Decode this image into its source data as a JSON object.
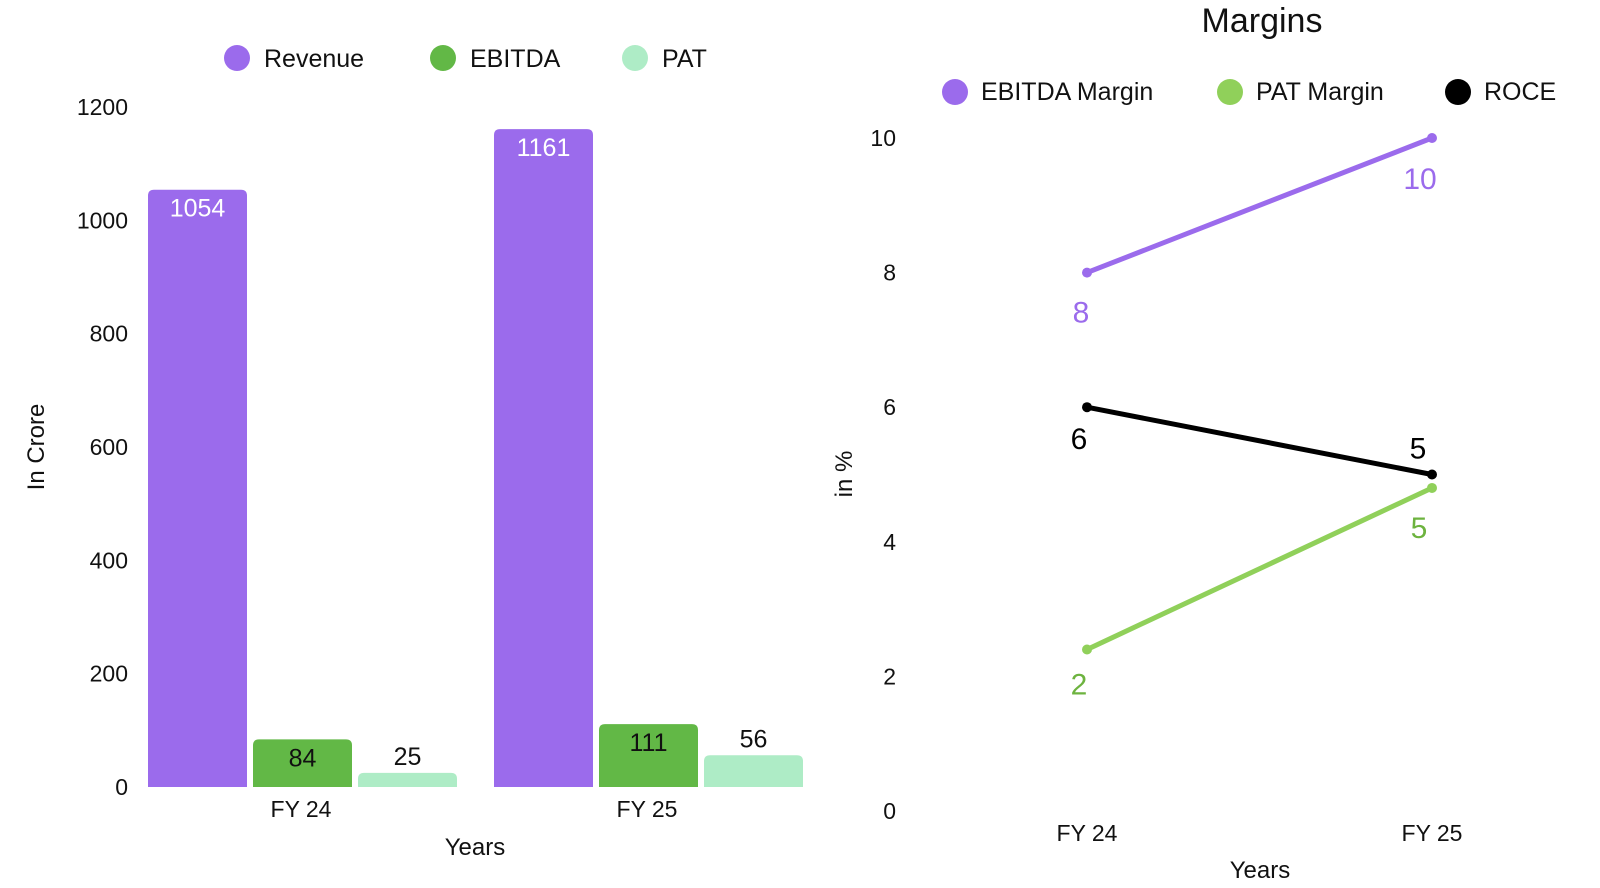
{
  "chart_data": [
    {
      "type": "bar",
      "title": "",
      "categories": [
        "FY 24",
        "FY 25"
      ],
      "series": [
        {
          "name": "Revenue",
          "color": "#9b6bec",
          "values": [
            1054,
            1161
          ],
          "label_color": "#ffffff"
        },
        {
          "name": "EBITDA",
          "color": "#62b846",
          "values": [
            84,
            111
          ],
          "label_color": "#111111"
        },
        {
          "name": "PAT",
          "color": "#aeecc6",
          "values": [
            25,
            56
          ],
          "label_color": "#111111"
        }
      ],
      "data_labels": [
        [
          "1054",
          "1161"
        ],
        [
          "84",
          "111"
        ],
        [
          "25",
          "56"
        ]
      ],
      "xlabel": "Years",
      "ylabel": "In Crore",
      "ylim": [
        0,
        1200
      ],
      "yticks": [
        "0",
        "200",
        "400",
        "600",
        "800",
        "1000",
        "1200"
      ],
      "legend_position": "top"
    },
    {
      "type": "line",
      "title": "Margins",
      "categories": [
        "FY 24",
        "FY 25"
      ],
      "series": [
        {
          "name": "EBITDA Margin",
          "color": "#9b6bec",
          "values": [
            8,
            10
          ],
          "labels": [
            "8",
            "10"
          ]
        },
        {
          "name": "PAT Margin",
          "color": "#90d05a",
          "label_color": "#6db33f",
          "values": [
            2.4,
            4.8
          ],
          "labels": [
            "2",
            "5"
          ]
        },
        {
          "name": "ROCE",
          "color": "#000000",
          "values": [
            6,
            5
          ],
          "labels": [
            "6",
            "5"
          ]
        }
      ],
      "xlabel": "Years",
      "ylabel": "in %",
      "ylim": [
        0,
        10
      ],
      "yticks": [
        "0",
        "2",
        "4",
        "6",
        "8",
        "10"
      ],
      "legend_position": "top"
    }
  ]
}
